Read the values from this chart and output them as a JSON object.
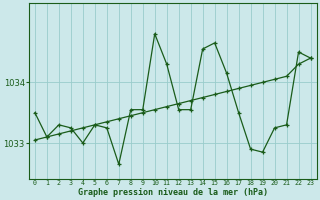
{
  "title": "Graphe pression niveau de la mer (hPa)",
  "background_color": "#cce8ea",
  "plot_bg_color": "#cce8ea",
  "grid_color": "#99cccc",
  "line_color": "#1a5c1a",
  "marker_color": "#1a5c1a",
  "x_labels": [
    "0",
    "1",
    "2",
    "3",
    "4",
    "5",
    "6",
    "7",
    "8",
    "9",
    "10",
    "11",
    "12",
    "13",
    "14",
    "15",
    "16",
    "17",
    "18",
    "19",
    "20",
    "21",
    "22",
    "23"
  ],
  "hours": [
    0,
    1,
    2,
    3,
    4,
    5,
    6,
    7,
    8,
    9,
    10,
    11,
    12,
    13,
    14,
    15,
    16,
    17,
    18,
    19,
    20,
    21,
    22,
    23
  ],
  "ylim": [
    1032.4,
    1035.3
  ],
  "yticks": [
    1033,
    1034
  ],
  "series1": [
    1033.5,
    1033.1,
    1033.3,
    1033.25,
    1033.0,
    1033.3,
    1033.25,
    1032.65,
    1033.55,
    1033.55,
    1034.8,
    1034.3,
    1033.55,
    1033.55,
    1034.55,
    1034.65,
    1034.15,
    1033.5,
    1032.9,
    1032.85,
    1033.25,
    1033.3,
    1034.5,
    1034.4
  ],
  "series2": [
    1033.05,
    1033.1,
    1033.15,
    1033.2,
    1033.25,
    1033.3,
    1033.35,
    1033.4,
    1033.45,
    1033.5,
    1033.55,
    1033.6,
    1033.65,
    1033.7,
    1033.75,
    1033.8,
    1033.85,
    1033.9,
    1033.95,
    1034.0,
    1034.05,
    1034.1,
    1034.3,
    1034.4
  ]
}
